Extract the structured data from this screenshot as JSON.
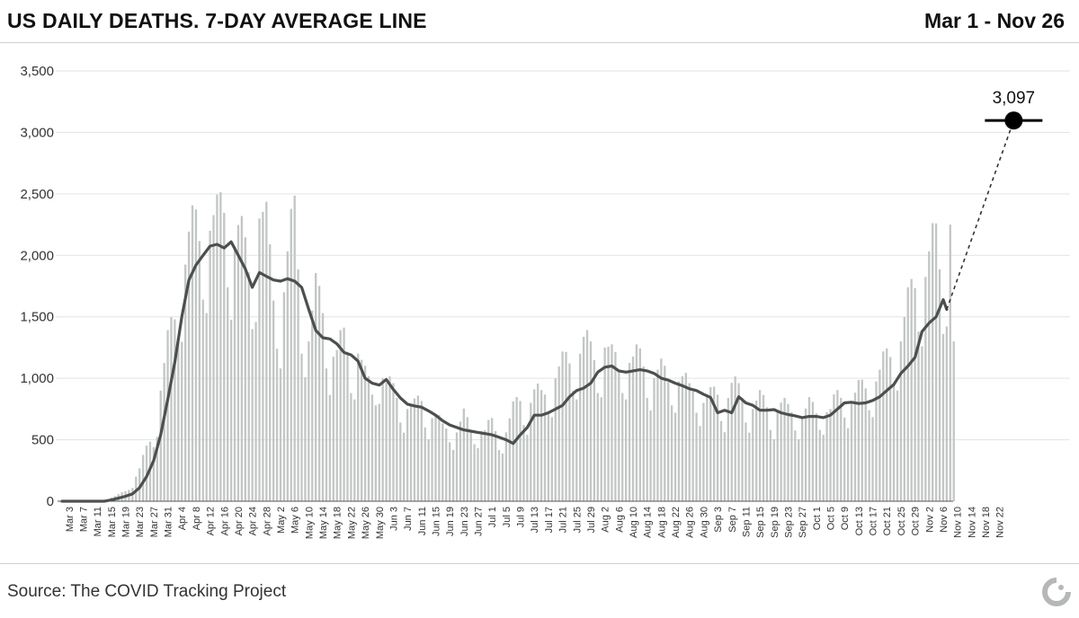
{
  "header": {
    "title": "US DAILY DEATHS. 7-DAY AVERAGE LINE",
    "date_range": "Mar 1 - Nov 26"
  },
  "footer": {
    "source": "Source: The COVID Tracking Project",
    "logo_icon": "covid-tracking-project-logo-icon"
  },
  "colors": {
    "bar": "#c2c6c4",
    "line": "#4b4f4e",
    "grid": "#e3e3e3",
    "marker": "#000000"
  },
  "chart_data": {
    "type": "bar",
    "title": "US DAILY DEATHS. 7-DAY AVERAGE LINE",
    "xlabel": "",
    "ylabel": "",
    "ylim": [
      0,
      3500
    ],
    "yticks": [
      0,
      500,
      1000,
      1500,
      2000,
      2500,
      3000,
      3500
    ],
    "ytick_labels": [
      "0",
      "500",
      "1,000",
      "1,500",
      "2,000",
      "2,500",
      "3,000",
      "3,500"
    ],
    "grid": true,
    "start_date": "Mar 1",
    "end_date": "Nov 26",
    "x_tick_labels": [
      "Mar 3",
      "Mar 7",
      "Mar 11",
      "Mar 15",
      "Mar 19",
      "Mar 23",
      "Mar 27",
      "Mar 31",
      "Apr 4",
      "Apr 8",
      "Apr 12",
      "Apr 16",
      "Apr 20",
      "Apr 24",
      "Apr 28",
      "May 2",
      "May 6",
      "May 10",
      "May 14",
      "May 18",
      "May 22",
      "May 26",
      "May 30",
      "Jun 3",
      "Jun 7",
      "Jun 11",
      "Jun 15",
      "Jun 19",
      "Jun 23",
      "Jun 27",
      "Jul 1",
      "Jul 5",
      "Jul 9",
      "Jul 13",
      "Jul 17",
      "Jul 21",
      "Jul 25",
      "Jul 29",
      "Aug 2",
      "Aug 6",
      "Aug 10",
      "Aug 14",
      "Aug 18",
      "Aug 22",
      "Aug 26",
      "Aug 30",
      "Sep 3",
      "Sep 7",
      "Sep 11",
      "Sep 15",
      "Sep 19",
      "Sep 23",
      "Sep 27",
      "Oct 1",
      "Oct 5",
      "Oct 9",
      "Oct 13",
      "Oct 17",
      "Oct 21",
      "Oct 25",
      "Oct 29",
      "Nov 2",
      "Nov 6",
      "Nov 10",
      "Nov 14",
      "Nov 18",
      "Nov 22"
    ],
    "x_tick_first_day": 2,
    "x_tick_step_days": 4,
    "daily_anchors": [
      [
        0,
        0
      ],
      [
        12,
        0
      ],
      [
        14,
        30
      ],
      [
        16,
        50
      ],
      [
        18,
        80
      ],
      [
        20,
        150
      ],
      [
        22,
        250
      ],
      [
        24,
        400
      ],
      [
        26,
        550
      ],
      [
        28,
        900
      ],
      [
        30,
        1200
      ],
      [
        32,
        1450
      ],
      [
        34,
        1800
      ],
      [
        36,
        2050
      ],
      [
        38,
        2100
      ],
      [
        40,
        2050
      ],
      [
        42,
        2200
      ],
      [
        44,
        2150
      ],
      [
        46,
        2300
      ],
      [
        48,
        2050
      ],
      [
        50,
        2100
      ],
      [
        52,
        1900
      ],
      [
        54,
        1750
      ],
      [
        56,
        2300
      ],
      [
        58,
        2100
      ],
      [
        60,
        1600
      ],
      [
        62,
        1500
      ],
      [
        64,
        1900
      ],
      [
        66,
        2200
      ],
      [
        68,
        1500
      ],
      [
        70,
        1300
      ],
      [
        72,
        1600
      ],
      [
        74,
        1500
      ],
      [
        76,
        1200
      ],
      [
        78,
        1150
      ],
      [
        80,
        1250
      ],
      [
        82,
        1100
      ],
      [
        84,
        1200
      ],
      [
        86,
        950
      ],
      [
        88,
        850
      ],
      [
        90,
        1100
      ],
      [
        92,
        900
      ],
      [
        94,
        850
      ],
      [
        96,
        800
      ],
      [
        98,
        750
      ],
      [
        100,
        720
      ],
      [
        102,
        800
      ],
      [
        104,
        700
      ],
      [
        106,
        650
      ],
      [
        108,
        560
      ],
      [
        110,
        600
      ],
      [
        112,
        560
      ],
      [
        114,
        650
      ],
      [
        116,
        560
      ],
      [
        118,
        600
      ],
      [
        120,
        540
      ],
      [
        122,
        600
      ],
      [
        124,
        520
      ],
      [
        126,
        560
      ],
      [
        128,
        700
      ],
      [
        130,
        800
      ],
      [
        132,
        750
      ],
      [
        134,
        850
      ],
      [
        136,
        800
      ],
      [
        138,
        900
      ],
      [
        140,
        1000
      ],
      [
        142,
        1050
      ],
      [
        144,
        1100
      ],
      [
        146,
        1150
      ],
      [
        148,
        1250
      ],
      [
        150,
        1150
      ],
      [
        152,
        1100
      ],
      [
        154,
        1250
      ],
      [
        156,
        1100
      ],
      [
        158,
        1050
      ],
      [
        160,
        1150
      ],
      [
        162,
        1100
      ],
      [
        164,
        1100
      ],
      [
        166,
        1050
      ],
      [
        168,
        1000
      ],
      [
        170,
        1000
      ],
      [
        172,
        950
      ],
      [
        174,
        1000
      ],
      [
        176,
        950
      ],
      [
        178,
        850
      ],
      [
        180,
        900
      ],
      [
        182,
        800
      ],
      [
        184,
        800
      ],
      [
        186,
        850
      ],
      [
        188,
        780
      ],
      [
        190,
        900
      ],
      [
        192,
        850
      ],
      [
        194,
        800
      ],
      [
        196,
        750
      ],
      [
        198,
        780
      ],
      [
        200,
        750
      ],
      [
        202,
        700
      ],
      [
        204,
        750
      ],
      [
        206,
        700
      ],
      [
        208,
        720
      ],
      [
        210,
        680
      ],
      [
        212,
        730
      ],
      [
        214,
        700
      ],
      [
        216,
        750
      ],
      [
        218,
        700
      ],
      [
        220,
        800
      ],
      [
        222,
        850
      ],
      [
        224,
        800
      ],
      [
        226,
        850
      ],
      [
        228,
        900
      ],
      [
        230,
        950
      ],
      [
        232,
        1000
      ],
      [
        234,
        1100
      ],
      [
        236,
        1200
      ],
      [
        238,
        1300
      ],
      [
        240,
        1500
      ],
      [
        242,
        1700
      ],
      [
        244,
        1750
      ],
      [
        246,
        1900
      ],
      [
        248,
        2000
      ],
      [
        250,
        1700
      ],
      [
        252,
        2250
      ],
      [
        253,
        1300
      ]
    ],
    "weekend_dip_pattern": [
      1.0,
      1.07,
      1.16,
      1.13,
      1.02,
      0.8,
      0.72
    ],
    "seven_day_average": [
      [
        0,
        0
      ],
      [
        12,
        0
      ],
      [
        14,
        10
      ],
      [
        16,
        25
      ],
      [
        18,
        40
      ],
      [
        20,
        60
      ],
      [
        22,
        110
      ],
      [
        24,
        200
      ],
      [
        26,
        330
      ],
      [
        28,
        540
      ],
      [
        30,
        830
      ],
      [
        32,
        1130
      ],
      [
        34,
        1500
      ],
      [
        36,
        1800
      ],
      [
        38,
        1920
      ],
      [
        40,
        2000
      ],
      [
        42,
        2075
      ],
      [
        44,
        2090
      ],
      [
        46,
        2060
      ],
      [
        48,
        2110
      ],
      [
        50,
        2000
      ],
      [
        52,
        1890
      ],
      [
        54,
        1740
      ],
      [
        56,
        1860
      ],
      [
        58,
        1830
      ],
      [
        60,
        1800
      ],
      [
        62,
        1790
      ],
      [
        64,
        1810
      ],
      [
        66,
        1790
      ],
      [
        68,
        1740
      ],
      [
        70,
        1560
      ],
      [
        72,
        1390
      ],
      [
        74,
        1330
      ],
      [
        76,
        1320
      ],
      [
        78,
        1280
      ],
      [
        80,
        1210
      ],
      [
        82,
        1190
      ],
      [
        84,
        1140
      ],
      [
        86,
        1000
      ],
      [
        88,
        960
      ],
      [
        90,
        945
      ],
      [
        92,
        990
      ],
      [
        94,
        910
      ],
      [
        96,
        840
      ],
      [
        98,
        790
      ],
      [
        100,
        775
      ],
      [
        102,
        765
      ],
      [
        104,
        735
      ],
      [
        106,
        700
      ],
      [
        108,
        655
      ],
      [
        110,
        620
      ],
      [
        112,
        600
      ],
      [
        114,
        580
      ],
      [
        116,
        570
      ],
      [
        118,
        560
      ],
      [
        120,
        550
      ],
      [
        122,
        540
      ],
      [
        124,
        520
      ],
      [
        126,
        500
      ],
      [
        128,
        470
      ],
      [
        130,
        540
      ],
      [
        132,
        600
      ],
      [
        134,
        700
      ],
      [
        136,
        700
      ],
      [
        138,
        720
      ],
      [
        140,
        750
      ],
      [
        142,
        780
      ],
      [
        144,
        850
      ],
      [
        146,
        900
      ],
      [
        148,
        920
      ],
      [
        150,
        960
      ],
      [
        152,
        1050
      ],
      [
        154,
        1090
      ],
      [
        156,
        1100
      ],
      [
        158,
        1060
      ],
      [
        160,
        1050
      ],
      [
        162,
        1060
      ],
      [
        164,
        1070
      ],
      [
        166,
        1060
      ],
      [
        168,
        1040
      ],
      [
        170,
        1000
      ],
      [
        172,
        985
      ],
      [
        174,
        960
      ],
      [
        176,
        940
      ],
      [
        178,
        915
      ],
      [
        180,
        900
      ],
      [
        182,
        870
      ],
      [
        184,
        845
      ],
      [
        186,
        720
      ],
      [
        188,
        740
      ],
      [
        190,
        720
      ],
      [
        192,
        850
      ],
      [
        194,
        800
      ],
      [
        196,
        780
      ],
      [
        198,
        740
      ],
      [
        200,
        740
      ],
      [
        202,
        745
      ],
      [
        204,
        720
      ],
      [
        206,
        705
      ],
      [
        208,
        695
      ],
      [
        210,
        680
      ],
      [
        212,
        690
      ],
      [
        214,
        690
      ],
      [
        216,
        680
      ],
      [
        218,
        700
      ],
      [
        220,
        750
      ],
      [
        222,
        800
      ],
      [
        224,
        805
      ],
      [
        226,
        795
      ],
      [
        228,
        800
      ],
      [
        230,
        820
      ],
      [
        232,
        850
      ],
      [
        234,
        900
      ],
      [
        236,
        950
      ],
      [
        238,
        1040
      ],
      [
        240,
        1100
      ],
      [
        242,
        1170
      ],
      [
        244,
        1380
      ],
      [
        246,
        1450
      ],
      [
        248,
        1500
      ],
      [
        250,
        1640
      ],
      [
        251,
        1560
      ]
    ],
    "annotation": {
      "label": "3,097",
      "day": 270,
      "value": 3097,
      "connector": "dashed",
      "from_day": 251,
      "from_value": 1560
    }
  }
}
